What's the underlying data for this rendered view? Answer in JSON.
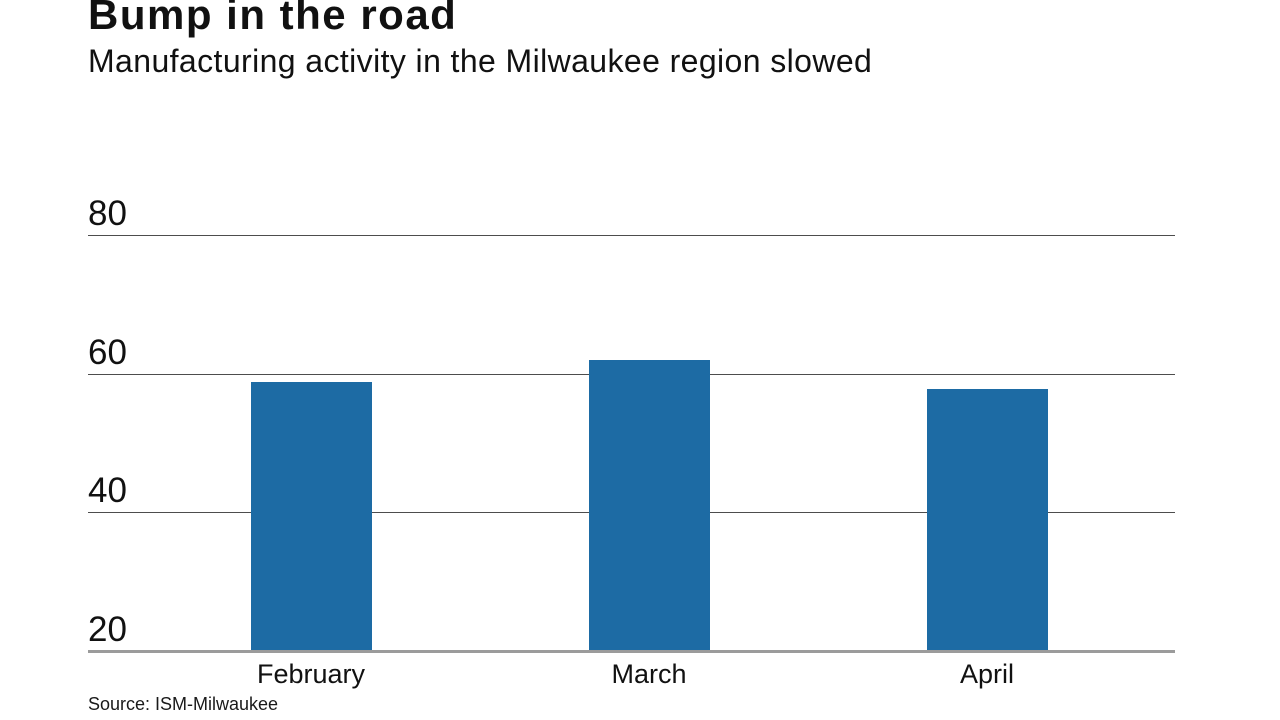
{
  "page": {
    "background_color": "#ffffff"
  },
  "header": {
    "title": "Bump in the road",
    "subtitle": "Manufacturing activity in the Milwaukee region slowed"
  },
  "footer": {
    "source_note": "Source: ISM-Milwaukee"
  },
  "chart_data": {
    "type": "bar",
    "title": "Bump in the road",
    "subtitle": "Manufacturing activity in the Milwaukee region slowed",
    "categories": [
      "February",
      "March",
      "April"
    ],
    "values": [
      58.8,
      61.9,
      57.8
    ],
    "xlabel": "",
    "ylabel": "",
    "ylim": [
      20,
      80
    ],
    "yticks": [
      20,
      40,
      60,
      80
    ],
    "grid": true,
    "legend": "none",
    "bars_drawn_from_baseline_value": 20,
    "source": "Source: ISM-Milwaukee",
    "colors": {
      "bar": "#1d6ba4",
      "gridline": "#4d4d4d",
      "axis_baseline": "#9b9b9b",
      "text": "#111111",
      "background": "#ffffff"
    }
  }
}
